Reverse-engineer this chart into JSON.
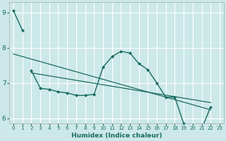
{
  "xlabel": "Humidex (Indice chaleur)",
  "background_color": "#cce8e8",
  "grid_color": "#ffffff",
  "line_color": "#1a6b60",
  "xlim": [
    0,
    23
  ],
  "ylim": [
    6.0,
    9.2
  ],
  "yticks": [
    6,
    7,
    8,
    9
  ],
  "xticks": [
    0,
    1,
    2,
    3,
    4,
    5,
    6,
    7,
    8,
    9,
    10,
    11,
    12,
    13,
    14,
    15,
    16,
    17,
    18,
    19,
    20,
    21,
    22,
    23
  ],
  "series1_x": [
    0,
    1
  ],
  "series1_y": [
    9.05,
    8.5
  ],
  "series2_x": [
    2,
    3,
    4,
    5,
    6,
    7,
    8,
    9,
    10,
    11,
    12,
    13,
    14,
    15,
    16,
    17,
    18,
    19,
    20,
    21,
    22
  ],
  "series2_y": [
    7.35,
    6.85,
    6.82,
    6.75,
    6.72,
    6.65,
    6.65,
    6.68,
    7.45,
    7.75,
    7.9,
    7.85,
    7.55,
    7.38,
    7.0,
    6.6,
    6.6,
    5.85,
    5.78,
    5.7,
    6.32
  ]
}
